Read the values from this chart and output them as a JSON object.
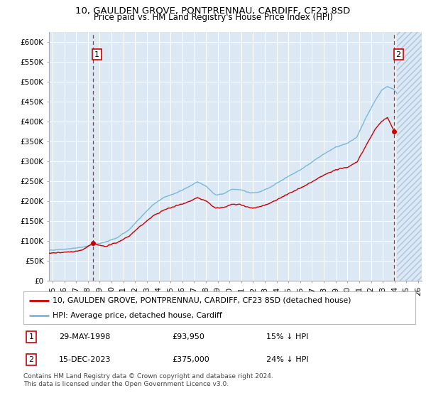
{
  "title1": "10, GAULDEN GROVE, PONTPRENNAU, CARDIFF, CF23 8SD",
  "title2": "Price paid vs. HM Land Registry's House Price Index (HPI)",
  "ylabel_ticks": [
    "£0",
    "£50K",
    "£100K",
    "£150K",
    "£200K",
    "£250K",
    "£300K",
    "£350K",
    "£400K",
    "£450K",
    "£500K",
    "£550K",
    "£600K"
  ],
  "ytick_values": [
    0,
    50000,
    100000,
    150000,
    200000,
    250000,
    300000,
    350000,
    400000,
    450000,
    500000,
    550000,
    600000
  ],
  "ylim": [
    0,
    625000
  ],
  "xlim_start": 1994.7,
  "xlim_end": 2026.3,
  "xticks": [
    1995,
    1996,
    1997,
    1998,
    1999,
    2000,
    2001,
    2002,
    2003,
    2004,
    2005,
    2006,
    2007,
    2008,
    2009,
    2010,
    2011,
    2012,
    2013,
    2014,
    2015,
    2016,
    2017,
    2018,
    2019,
    2020,
    2021,
    2022,
    2023,
    2024,
    2025,
    2026
  ],
  "xtick_labels": [
    "95",
    "96",
    "97",
    "98",
    "99",
    "00",
    "01",
    "02",
    "03",
    "04",
    "05",
    "06",
    "07",
    "08",
    "09",
    "10",
    "11",
    "12",
    "13",
    "14",
    "15",
    "16",
    "17",
    "18",
    "19",
    "20",
    "21",
    "22",
    "23",
    "24",
    "25",
    "26"
  ],
  "bg_color": "#dce9f5",
  "line_color_hpi": "#7ab8d9",
  "line_color_paid": "#cc0000",
  "sale1_date": 1998.41,
  "sale1_price": 93950,
  "sale2_date": 2023.96,
  "sale2_price": 375000,
  "hatch_start": 2024.2,
  "legend_label1": "10, GAULDEN GROVE, PONTPRENNAU, CARDIFF, CF23 8SD (detached house)",
  "legend_label2": "HPI: Average price, detached house, Cardiff",
  "note1_num": "1",
  "note1_date": "29-MAY-1998",
  "note1_price": "£93,950",
  "note1_hpi": "15% ↓ HPI",
  "note2_num": "2",
  "note2_date": "15-DEC-2023",
  "note2_price": "£375,000",
  "note2_hpi": "24% ↓ HPI",
  "footer": "Contains HM Land Registry data © Crown copyright and database right 2024.\nThis data is licensed under the Open Government Licence v3.0.",
  "title_fontsize": 9.5,
  "subtitle_fontsize": 8.5
}
